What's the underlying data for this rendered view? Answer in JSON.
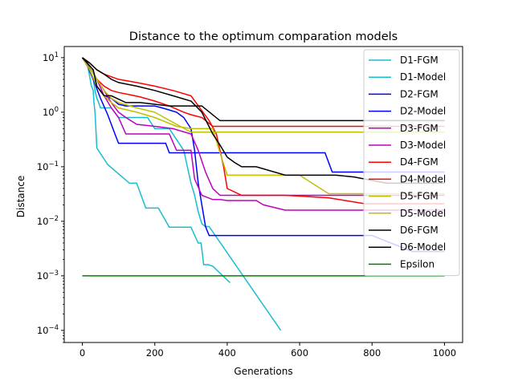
{
  "chart_data": {
    "type": "line",
    "title": "Distance to the optimum comparation models",
    "xlabel": "Generations",
    "ylabel": "Distance",
    "xlim": [
      -50,
      1050
    ],
    "ylim": [
      6e-05,
      16
    ],
    "yscale": "log",
    "grid": false,
    "legend_position": "upper right",
    "x_ticks": [
      "0",
      "200",
      "400",
      "600",
      "800",
      "1000"
    ],
    "x_tick_values": [
      0,
      200,
      400,
      600,
      800,
      1000
    ],
    "y_ticks": [
      "10^-4",
      "10^-3",
      "10^-2",
      "10^-1",
      "10^0",
      "10^1"
    ],
    "y_tick_values": [
      0.0001,
      0.001,
      0.01,
      0.1,
      1,
      10
    ],
    "series": [
      {
        "name": "D1-FGM",
        "color": "#17becf",
        "x": [
          0,
          15,
          25,
          30,
          32,
          35,
          38,
          40,
          70,
          130,
          150,
          175,
          210,
          240,
          300,
          320,
          328,
          335,
          348,
          360,
          408
        ],
        "y": [
          10,
          7,
          3,
          2.5,
          1.5,
          1.0,
          0.4,
          0.22,
          0.11,
          0.05,
          0.05,
          0.0175,
          0.0175,
          0.0078,
          0.0078,
          0.004,
          0.004,
          0.0016,
          0.0016,
          0.0015,
          0.00075
        ]
      },
      {
        "name": "D1-Model",
        "color": "#17becf",
        "x": [
          0,
          15,
          30,
          35,
          40,
          45,
          50,
          80,
          100,
          180,
          200,
          240,
          280,
          300,
          310,
          320,
          330,
          340,
          345,
          350,
          548
        ],
        "y": [
          10,
          8,
          4,
          2.5,
          1.8,
          1.5,
          1.2,
          1.2,
          0.8,
          0.8,
          0.5,
          0.5,
          0.2,
          0.05,
          0.03,
          0.015,
          0.009,
          0.008,
          0.008,
          0.008,
          0.0001
        ]
      },
      {
        "name": "D2-FGM",
        "color": "#0000ff",
        "x": [
          0,
          20,
          40,
          60,
          80,
          100,
          120,
          200,
          220,
          240,
          260,
          280,
          300,
          310,
          320,
          330,
          340,
          350,
          400,
          600,
          800,
          910,
          1000
        ],
        "y": [
          10,
          6,
          3,
          2,
          1.8,
          1.4,
          1.3,
          1.3,
          1.2,
          1.1,
          1.0,
          0.8,
          0.5,
          0.2,
          0.05,
          0.02,
          0.008,
          0.0055,
          0.0055,
          0.0055,
          0.0055,
          0.0028,
          0.0028
        ]
      },
      {
        "name": "D2-Model",
        "color": "#0000ff",
        "x": [
          0,
          10,
          30,
          50,
          70,
          80,
          90,
          100,
          230,
          240,
          300,
          400,
          670,
          690,
          900,
          1000
        ],
        "y": [
          10,
          8,
          4,
          1.8,
          0.9,
          0.6,
          0.4,
          0.27,
          0.27,
          0.18,
          0.18,
          0.18,
          0.18,
          0.08,
          0.08,
          0.08
        ]
      },
      {
        "name": "D3-FGM",
        "color": "#bf00bf",
        "x": [
          0,
          20,
          40,
          60,
          80,
          100,
          120,
          150,
          200,
          250,
          300,
          320,
          340,
          360,
          380,
          400,
          500,
          600,
          780,
          900,
          1000
        ],
        "y": [
          10,
          7,
          4,
          2.5,
          1.5,
          1.0,
          0.8,
          0.6,
          0.55,
          0.5,
          0.4,
          0.2,
          0.08,
          0.04,
          0.03,
          0.03,
          0.03,
          0.03,
          0.03,
          0.03,
          0.03
        ]
      },
      {
        "name": "D3-Model",
        "color": "#bf00bf",
        "x": [
          0,
          20,
          40,
          60,
          80,
          100,
          120,
          240,
          260,
          300,
          310,
          330,
          360,
          380,
          400,
          480,
          500,
          560,
          630,
          700,
          750,
          780,
          1000
        ],
        "y": [
          10,
          7,
          4,
          2,
          1.2,
          0.8,
          0.4,
          0.4,
          0.2,
          0.2,
          0.06,
          0.03,
          0.025,
          0.025,
          0.024,
          0.024,
          0.02,
          0.016,
          0.016,
          0.016,
          0.016,
          0.016,
          0.016
        ]
      },
      {
        "name": "D4-FGM",
        "color": "#ff0000",
        "x": [
          0,
          20,
          40,
          60,
          80,
          100,
          130,
          160,
          200,
          240,
          280,
          300,
          330,
          360,
          380,
          400,
          480,
          560,
          800,
          1000
        ],
        "y": [
          10,
          7,
          4,
          3,
          2.5,
          2.3,
          2.1,
          1.9,
          1.6,
          1.3,
          1.0,
          0.9,
          0.8,
          0.55,
          0.55,
          0.55,
          0.55,
          0.55,
          0.55,
          0.55
        ]
      },
      {
        "name": "D4-Model",
        "color": "#ff0000",
        "x": [
          0,
          20,
          40,
          60,
          100,
          150,
          200,
          250,
          300,
          350,
          370,
          380,
          390,
          400,
          440,
          480,
          560,
          680,
          780,
          1000
        ],
        "y": [
          10,
          8,
          6,
          5,
          4,
          3.5,
          3,
          2.5,
          2.0,
          0.7,
          0.4,
          0.2,
          0.1,
          0.04,
          0.03,
          0.03,
          0.03,
          0.027,
          0.021,
          0.021
        ]
      },
      {
        "name": "D5-FGM",
        "color": "#bfbf00",
        "x": [
          0,
          20,
          40,
          60,
          80,
          100,
          150,
          200,
          260,
          300,
          340,
          360,
          380,
          400,
          460,
          520,
          600,
          680,
          700,
          820,
          1000
        ],
        "y": [
          10,
          6,
          3,
          2,
          1.5,
          1.2,
          1.0,
          0.8,
          0.55,
          0.5,
          0.5,
          0.5,
          0.18,
          0.07,
          0.07,
          0.07,
          0.07,
          0.032,
          0.032,
          0.032,
          0.032
        ]
      },
      {
        "name": "D5-Model",
        "color": "#bfbf00",
        "x": [
          0,
          20,
          40,
          60,
          80,
          100,
          150,
          200,
          260,
          300,
          340,
          370,
          380,
          390,
          420,
          700,
          850,
          1000
        ],
        "y": [
          10,
          7,
          4,
          2.5,
          1.8,
          1.5,
          1.2,
          1.0,
          0.6,
          0.43,
          0.43,
          0.43,
          0.43,
          0.43,
          0.43,
          0.43,
          0.43,
          0.43
        ]
      },
      {
        "name": "D6-FGM",
        "color": "#000000",
        "x": [
          0,
          20,
          40,
          60,
          80,
          100,
          150,
          200,
          250,
          300,
          330,
          360,
          380,
          400,
          420,
          440,
          480,
          560,
          700,
          750,
          840,
          1000
        ],
        "y": [
          10,
          8,
          6,
          5,
          4,
          3.5,
          3,
          2.5,
          2.0,
          1.6,
          1.0,
          0.4,
          0.25,
          0.15,
          0.12,
          0.1,
          0.1,
          0.07,
          0.07,
          0.065,
          0.05,
          0.05
        ]
      },
      {
        "name": "D6-Model",
        "color": "#000000",
        "x": [
          0,
          30,
          40,
          60,
          70,
          80,
          120,
          160,
          240,
          330,
          380,
          400,
          600,
          800,
          1000
        ],
        "y": [
          10,
          6,
          3,
          2,
          2,
          2,
          1.5,
          1.5,
          1.3,
          1.3,
          0.7,
          0.7,
          0.7,
          0.7,
          0.7
        ]
      },
      {
        "name": "Epsilon",
        "color": "#008000",
        "x": [
          0,
          1000
        ],
        "y": [
          0.001,
          0.001
        ]
      }
    ]
  }
}
